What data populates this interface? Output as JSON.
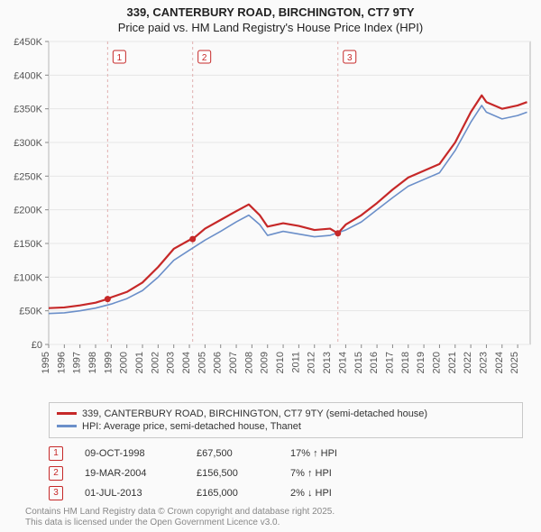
{
  "title_line1": "339, CANTERBURY ROAD, BIRCHINGTON, CT7 9TY",
  "title_line2": "Price paid vs. HM Land Registry's House Price Index (HPI)",
  "chart": {
    "type": "line",
    "background_color": "#fafafa",
    "grid_color": "#e6e6e6",
    "axis_color": "#888888",
    "label_fontsize": 11,
    "x": {
      "min": 1995,
      "max": 2025.8,
      "ticks": [
        1995,
        1996,
        1997,
        1998,
        1999,
        2000,
        2001,
        2002,
        2003,
        2004,
        2005,
        2006,
        2007,
        2008,
        2009,
        2010,
        2011,
        2012,
        2013,
        2014,
        2015,
        2016,
        2017,
        2018,
        2019,
        2020,
        2021,
        2022,
        2023,
        2024,
        2025
      ]
    },
    "y": {
      "min": 0,
      "max": 450000,
      "ticks": [
        0,
        50000,
        100000,
        150000,
        200000,
        250000,
        300000,
        350000,
        400000,
        450000
      ],
      "tick_labels": [
        "£0",
        "£50K",
        "£100K",
        "£150K",
        "£200K",
        "£250K",
        "£300K",
        "£350K",
        "£400K",
        "£450K"
      ]
    },
    "series": [
      {
        "id": "price_paid",
        "label": "339, CANTERBURY ROAD, BIRCHINGTON, CT7 9TY (semi-detached house)",
        "color": "#c62828",
        "line_width": 2.2,
        "data": [
          [
            1995,
            54000
          ],
          [
            1996,
            55000
          ],
          [
            1997,
            58000
          ],
          [
            1998,
            62000
          ],
          [
            1998.77,
            67500
          ],
          [
            1999,
            70000
          ],
          [
            2000,
            78000
          ],
          [
            2001,
            92000
          ],
          [
            2002,
            115000
          ],
          [
            2003,
            142000
          ],
          [
            2004,
            155000
          ],
          [
            2004.21,
            156500
          ],
          [
            2005,
            172000
          ],
          [
            2006,
            185000
          ],
          [
            2007,
            198000
          ],
          [
            2007.8,
            208000
          ],
          [
            2008.5,
            192000
          ],
          [
            2009,
            175000
          ],
          [
            2010,
            180000
          ],
          [
            2011,
            176000
          ],
          [
            2012,
            170000
          ],
          [
            2013,
            172000
          ],
          [
            2013.5,
            165000
          ],
          [
            2014,
            178000
          ],
          [
            2015,
            192000
          ],
          [
            2016,
            210000
          ],
          [
            2017,
            230000
          ],
          [
            2018,
            248000
          ],
          [
            2019,
            258000
          ],
          [
            2020,
            268000
          ],
          [
            2021,
            300000
          ],
          [
            2022,
            345000
          ],
          [
            2022.7,
            370000
          ],
          [
            2023,
            360000
          ],
          [
            2024,
            350000
          ],
          [
            2025,
            355000
          ],
          [
            2025.6,
            360000
          ]
        ]
      },
      {
        "id": "hpi",
        "label": "HPI: Average price, semi-detached house, Thanet",
        "color": "#6b8fc9",
        "line_width": 1.6,
        "data": [
          [
            1995,
            46000
          ],
          [
            1996,
            47000
          ],
          [
            1997,
            50000
          ],
          [
            1998,
            54000
          ],
          [
            1999,
            60000
          ],
          [
            2000,
            68000
          ],
          [
            2001,
            80000
          ],
          [
            2002,
            100000
          ],
          [
            2003,
            125000
          ],
          [
            2004,
            140000
          ],
          [
            2005,
            155000
          ],
          [
            2006,
            168000
          ],
          [
            2007,
            182000
          ],
          [
            2007.8,
            192000
          ],
          [
            2008.5,
            178000
          ],
          [
            2009,
            162000
          ],
          [
            2010,
            168000
          ],
          [
            2011,
            164000
          ],
          [
            2012,
            160000
          ],
          [
            2013,
            162000
          ],
          [
            2014,
            170000
          ],
          [
            2015,
            182000
          ],
          [
            2016,
            200000
          ],
          [
            2017,
            218000
          ],
          [
            2018,
            235000
          ],
          [
            2019,
            245000
          ],
          [
            2020,
            255000
          ],
          [
            2021,
            288000
          ],
          [
            2022,
            330000
          ],
          [
            2022.7,
            355000
          ],
          [
            2023,
            345000
          ],
          [
            2024,
            335000
          ],
          [
            2025,
            340000
          ],
          [
            2025.6,
            345000
          ]
        ]
      }
    ],
    "event_markers": [
      {
        "n": "1",
        "x": 1998.77,
        "y": 67500,
        "line_color": "#e0b0b0",
        "badge_color": "#c62828"
      },
      {
        "n": "2",
        "x": 2004.21,
        "y": 156500,
        "line_color": "#e0b0b0",
        "badge_color": "#c62828"
      },
      {
        "n": "3",
        "x": 2013.5,
        "y": 165000,
        "line_color": "#e0b0b0",
        "badge_color": "#c62828"
      }
    ]
  },
  "legend": [
    {
      "color": "#c62828",
      "label": "339, CANTERBURY ROAD, BIRCHINGTON, CT7 9TY (semi-detached house)"
    },
    {
      "color": "#6b8fc9",
      "label": "HPI: Average price, semi-detached house, Thanet"
    }
  ],
  "events_table": [
    {
      "n": "1",
      "date": "09-OCT-1998",
      "price": "£67,500",
      "hpi": "17% ↑ HPI"
    },
    {
      "n": "2",
      "date": "19-MAR-2004",
      "price": "£156,500",
      "hpi": "7% ↑ HPI"
    },
    {
      "n": "3",
      "date": "01-JUL-2013",
      "price": "£165,000",
      "hpi": "2% ↓ HPI"
    }
  ],
  "footer_line1": "Contains HM Land Registry data © Crown copyright and database right 2025.",
  "footer_line2": "This data is licensed under the Open Government Licence v3.0."
}
